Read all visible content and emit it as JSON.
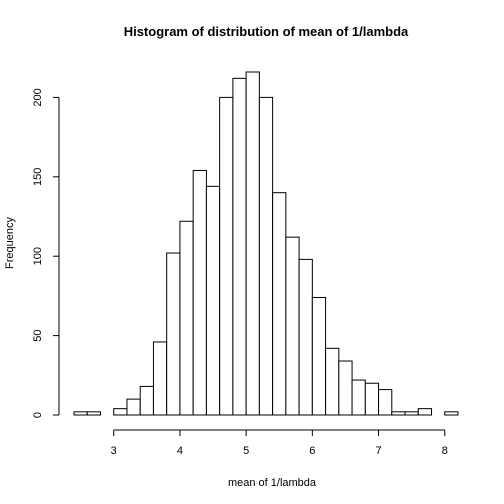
{
  "chart_data": {
    "type": "bar",
    "title": "Histogram of distribution of mean of 1/lambda",
    "xlabel": "mean of 1/lambda",
    "ylabel": "Frequency",
    "bin_width": 0.2,
    "bin_start": 2.4,
    "values": [
      2,
      2,
      0,
      4,
      10,
      18,
      46,
      102,
      122,
      154,
      144,
      200,
      212,
      216,
      200,
      140,
      112,
      98,
      74,
      42,
      34,
      22,
      20,
      16,
      2,
      2,
      4,
      0,
      2
    ],
    "xlim": [
      2.4,
      8.2
    ],
    "ylim": [
      0,
      216
    ],
    "x_ticks": [
      3,
      4,
      5,
      6,
      7,
      8
    ],
    "y_ticks": [
      0,
      50,
      100,
      150,
      200
    ],
    "grid": false,
    "colors": {
      "bar_fill": "#ffffff",
      "bar_stroke": "#000000"
    }
  }
}
